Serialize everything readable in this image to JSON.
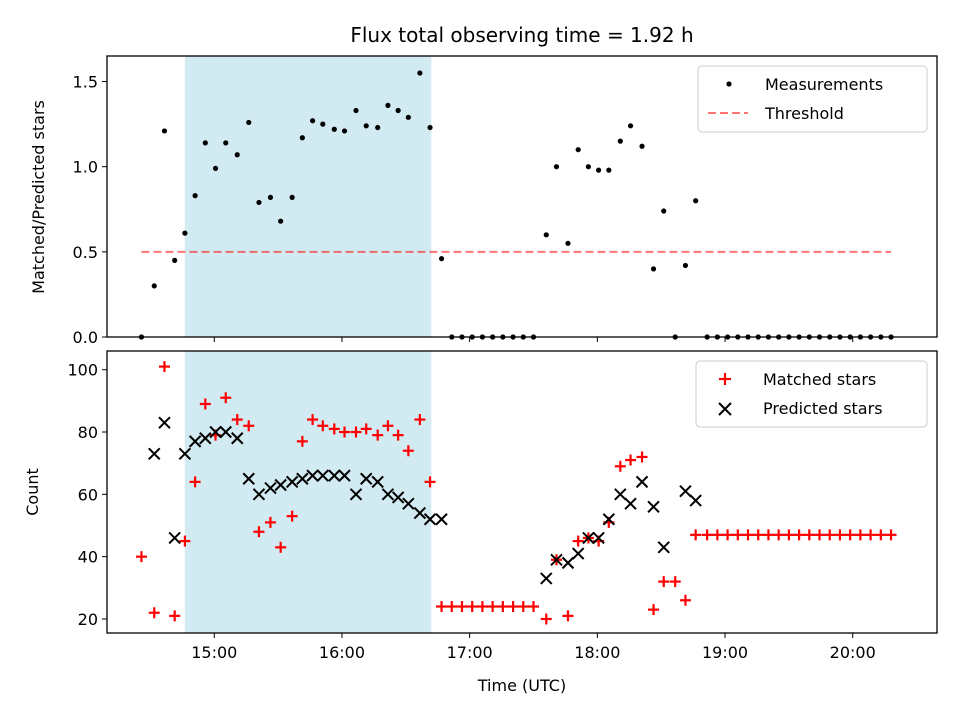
{
  "chart_data": {
    "title": "Flux total observing time = 1.92 h",
    "highlight_span": {
      "x0": 14.77,
      "x1": 16.7,
      "color": "#add8e6"
    },
    "x_axis": {
      "label": "Time (UTC)",
      "range": [
        14.16,
        20.66
      ],
      "ticks": [
        15,
        16,
        17,
        18,
        19,
        20
      ],
      "tick_labels": [
        "15:00",
        "16:00",
        "17:00",
        "18:00",
        "19:00",
        "20:00"
      ]
    },
    "panels": [
      {
        "type": "scatter",
        "ylabel": "Matched/Predicted stars",
        "ylim": [
          0,
          1.65
        ],
        "yticks": [
          0.0,
          0.5,
          1.0,
          1.5
        ],
        "ytick_labels": [
          "0.0",
          "0.5",
          "1.0",
          "1.5"
        ],
        "legend_position": "top-right",
        "series": [
          {
            "name": "Measurements",
            "marker": "dot",
            "color": "#000000",
            "points": [
              [
                14.43,
                0.0
              ],
              [
                14.53,
                0.3
              ],
              [
                14.61,
                1.21
              ],
              [
                14.69,
                0.45
              ],
              [
                14.77,
                0.61
              ],
              [
                14.85,
                0.83
              ],
              [
                14.93,
                1.14
              ],
              [
                15.01,
                0.99
              ],
              [
                15.09,
                1.14
              ],
              [
                15.18,
                1.07
              ],
              [
                15.27,
                1.26
              ],
              [
                15.35,
                0.79
              ],
              [
                15.44,
                0.82
              ],
              [
                15.52,
                0.68
              ],
              [
                15.61,
                0.82
              ],
              [
                15.69,
                1.17
              ],
              [
                15.77,
                1.27
              ],
              [
                15.85,
                1.25
              ],
              [
                15.94,
                1.22
              ],
              [
                16.02,
                1.21
              ],
              [
                16.11,
                1.33
              ],
              [
                16.19,
                1.24
              ],
              [
                16.28,
                1.23
              ],
              [
                16.36,
                1.36
              ],
              [
                16.44,
                1.33
              ],
              [
                16.52,
                1.29
              ],
              [
                16.61,
                1.55
              ],
              [
                16.69,
                1.23
              ],
              [
                16.78,
                0.46
              ],
              [
                16.86,
                0.0
              ],
              [
                16.94,
                0.0
              ],
              [
                17.02,
                0.0
              ],
              [
                17.1,
                0.0
              ],
              [
                17.18,
                0.0
              ],
              [
                17.26,
                0.0
              ],
              [
                17.34,
                0.0
              ],
              [
                17.42,
                0.0
              ],
              [
                17.5,
                0.0
              ],
              [
                17.6,
                0.6
              ],
              [
                17.68,
                1.0
              ],
              [
                17.77,
                0.55
              ],
              [
                17.85,
                1.1
              ],
              [
                17.93,
                1.0
              ],
              [
                18.01,
                0.98
              ],
              [
                18.09,
                0.98
              ],
              [
                18.18,
                1.15
              ],
              [
                18.26,
                1.24
              ],
              [
                18.35,
                1.12
              ],
              [
                18.44,
                0.4
              ],
              [
                18.52,
                0.74
              ],
              [
                18.61,
                0.0
              ],
              [
                18.69,
                0.42
              ],
              [
                18.77,
                0.8
              ],
              [
                18.86,
                0.0
              ],
              [
                18.94,
                0.0
              ],
              [
                19.02,
                0.0
              ],
              [
                19.1,
                0.0
              ],
              [
                19.18,
                0.0
              ],
              [
                19.26,
                0.0
              ],
              [
                19.34,
                0.0
              ],
              [
                19.42,
                0.0
              ],
              [
                19.5,
                0.0
              ],
              [
                19.58,
                0.0
              ],
              [
                19.66,
                0.0
              ],
              [
                19.74,
                0.0
              ],
              [
                19.82,
                0.0
              ],
              [
                19.9,
                0.0
              ],
              [
                19.98,
                0.0
              ],
              [
                20.06,
                0.0
              ],
              [
                20.14,
                0.0
              ],
              [
                20.22,
                0.0
              ],
              [
                20.3,
                0.0
              ]
            ]
          },
          {
            "name": "Threshold",
            "type": "line",
            "style": "dashed",
            "color": "#ff0000",
            "points": [
              [
                14.43,
                0.5
              ],
              [
                20.3,
                0.5
              ]
            ]
          }
        ]
      },
      {
        "type": "scatter",
        "ylabel": "Count",
        "ylim": [
          15.5,
          106
        ],
        "yticks": [
          20,
          40,
          60,
          80,
          100
        ],
        "ytick_labels": [
          "20",
          "40",
          "60",
          "80",
          "100"
        ],
        "legend_position": "top-right",
        "series": [
          {
            "name": "Matched stars",
            "marker": "plus",
            "color": "#ff0000",
            "points": [
              [
                14.43,
                40
              ],
              [
                14.53,
                22
              ],
              [
                14.61,
                101
              ],
              [
                14.69,
                21
              ],
              [
                14.77,
                45
              ],
              [
                14.85,
                64
              ],
              [
                14.93,
                89
              ],
              [
                15.01,
                79
              ],
              [
                15.09,
                91
              ],
              [
                15.18,
                84
              ],
              [
                15.27,
                82
              ],
              [
                15.35,
                48
              ],
              [
                15.44,
                51
              ],
              [
                15.52,
                43
              ],
              [
                15.61,
                53
              ],
              [
                15.69,
                77
              ],
              [
                15.77,
                84
              ],
              [
                15.85,
                82
              ],
              [
                15.94,
                81
              ],
              [
                16.02,
                80
              ],
              [
                16.11,
                80
              ],
              [
                16.19,
                81
              ],
              [
                16.28,
                79
              ],
              [
                16.36,
                82
              ],
              [
                16.44,
                79
              ],
              [
                16.52,
                74
              ],
              [
                16.61,
                84
              ],
              [
                16.69,
                64
              ],
              [
                16.78,
                24
              ],
              [
                16.86,
                24
              ],
              [
                16.94,
                24
              ],
              [
                17.02,
                24
              ],
              [
                17.1,
                24
              ],
              [
                17.18,
                24
              ],
              [
                17.26,
                24
              ],
              [
                17.34,
                24
              ],
              [
                17.42,
                24
              ],
              [
                17.5,
                24
              ],
              [
                17.6,
                20
              ],
              [
                17.68,
                39
              ],
              [
                17.77,
                21
              ],
              [
                17.85,
                45
              ],
              [
                17.93,
                46
              ],
              [
                18.01,
                45
              ],
              [
                18.09,
                51
              ],
              [
                18.18,
                69
              ],
              [
                18.26,
                71
              ],
              [
                18.35,
                72
              ],
              [
                18.44,
                23
              ],
              [
                18.52,
                32
              ],
              [
                18.61,
                32
              ],
              [
                18.69,
                26
              ],
              [
                18.77,
                47
              ],
              [
                18.86,
                47
              ],
              [
                18.94,
                47
              ],
              [
                19.02,
                47
              ],
              [
                19.1,
                47
              ],
              [
                19.18,
                47
              ],
              [
                19.26,
                47
              ],
              [
                19.34,
                47
              ],
              [
                19.42,
                47
              ],
              [
                19.5,
                47
              ],
              [
                19.58,
                47
              ],
              [
                19.66,
                47
              ],
              [
                19.74,
                47
              ],
              [
                19.82,
                47
              ],
              [
                19.9,
                47
              ],
              [
                19.98,
                47
              ],
              [
                20.06,
                47
              ],
              [
                20.14,
                47
              ],
              [
                20.22,
                47
              ],
              [
                20.3,
                47
              ]
            ]
          },
          {
            "name": "Predicted stars",
            "marker": "x",
            "color": "#000000",
            "points": [
              [
                14.53,
                73
              ],
              [
                14.61,
                83
              ],
              [
                14.69,
                46
              ],
              [
                14.77,
                73
              ],
              [
                14.85,
                77
              ],
              [
                14.93,
                78
              ],
              [
                15.01,
                80
              ],
              [
                15.09,
                80
              ],
              [
                15.18,
                78
              ],
              [
                15.27,
                65
              ],
              [
                15.35,
                60
              ],
              [
                15.44,
                62
              ],
              [
                15.52,
                63
              ],
              [
                15.61,
                64
              ],
              [
                15.69,
                65
              ],
              [
                15.77,
                66
              ],
              [
                15.85,
                66
              ],
              [
                15.94,
                66
              ],
              [
                16.02,
                66
              ],
              [
                16.11,
                60
              ],
              [
                16.19,
                65
              ],
              [
                16.28,
                64
              ],
              [
                16.36,
                60
              ],
              [
                16.44,
                59
              ],
              [
                16.52,
                57
              ],
              [
                16.61,
                54
              ],
              [
                16.69,
                52
              ],
              [
                16.78,
                52
              ],
              [
                17.6,
                33
              ],
              [
                17.68,
                39
              ],
              [
                17.77,
                38
              ],
              [
                17.85,
                41
              ],
              [
                17.93,
                46
              ],
              [
                18.01,
                46
              ],
              [
                18.09,
                52
              ],
              [
                18.18,
                60
              ],
              [
                18.26,
                57
              ],
              [
                18.35,
                64
              ],
              [
                18.44,
                56
              ],
              [
                18.52,
                43
              ],
              [
                18.69,
                61
              ],
              [
                18.77,
                58
              ]
            ]
          }
        ]
      }
    ]
  }
}
